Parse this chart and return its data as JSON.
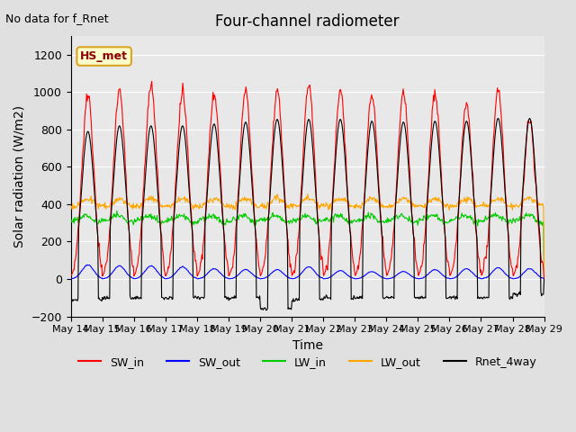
{
  "title": "Four-channel radiometer",
  "top_left_text": "No data for f_Rnet",
  "station_label": "HS_met",
  "ylabel": "Solar radiation (W/m2)",
  "xlabel": "Time",
  "ylim": [
    -200,
    1300
  ],
  "yticks": [
    -200,
    0,
    200,
    400,
    600,
    800,
    1000,
    1200
  ],
  "x_tick_labels": [
    "May 14",
    "May 15",
    "May 16",
    "May 17",
    "May 18",
    "May 19",
    "May 20",
    "May 21",
    "May 22",
    "May 23",
    "May 24",
    "May 25",
    "May 26",
    "May 27",
    "May 28",
    "May 29"
  ],
  "bg_color": "#e0e0e0",
  "plot_bg_color": "#e8e8e8",
  "grid_color": "white",
  "colors": {
    "SW_in": "#ff0000",
    "SW_out": "#0000ff",
    "LW_in": "#00cc00",
    "LW_out": "#ffa500",
    "Rnet_4way": "#000000"
  },
  "n_days": 15,
  "sw_in_peaks": [
    980,
    1005,
    1035,
    1000,
    985,
    1000,
    1005,
    1035,
    1010,
    995,
    995,
    990,
    940,
    1005,
    850
  ],
  "sw_out_peaks": [
    75,
    70,
    70,
    65,
    55,
    50,
    50,
    65,
    45,
    40,
    40,
    50,
    55,
    60,
    55
  ],
  "rnet_peaks": [
    790,
    820,
    820,
    820,
    830,
    840,
    855,
    855,
    855,
    845,
    840,
    845,
    845,
    860,
    860
  ],
  "rnet_night": [
    -110,
    -100,
    -100,
    -100,
    -100,
    -100,
    -160,
    -110,
    -100,
    -100,
    -100,
    -100,
    -100,
    -100,
    -80
  ]
}
